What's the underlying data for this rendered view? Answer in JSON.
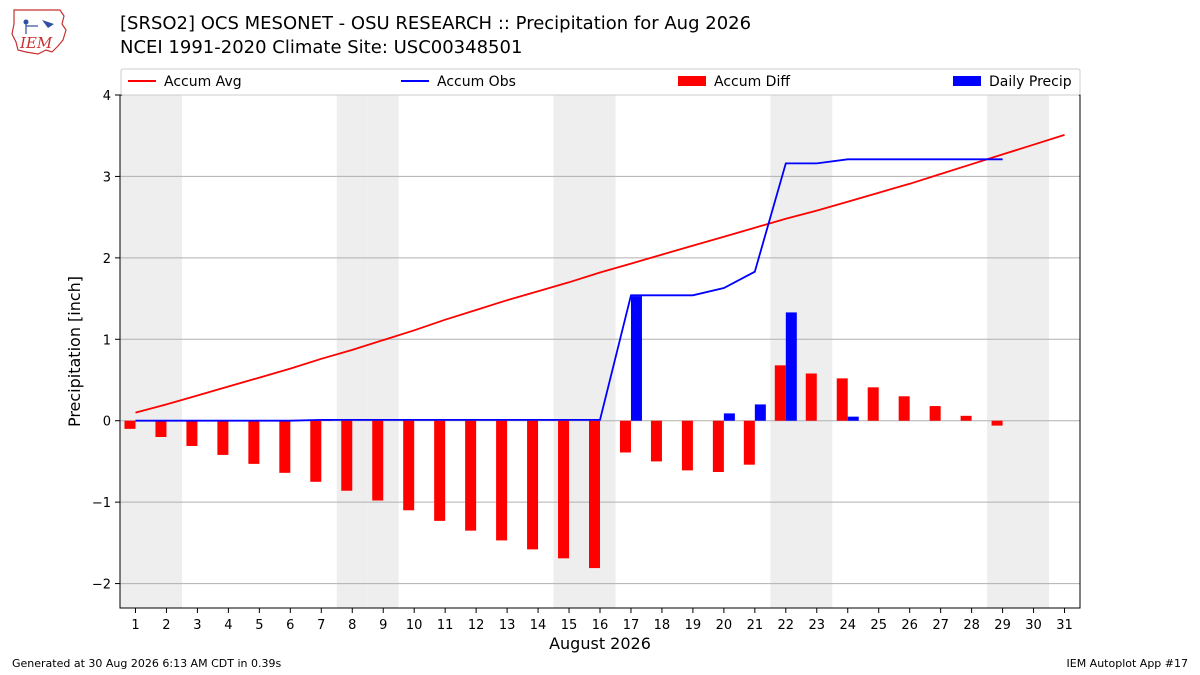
{
  "header": {
    "title_line1": "[SRSO2] OCS MESONET - OSU RESEARCH :: Precipitation for Aug 2026",
    "title_line2": "NCEI 1991-2020 Climate Site: USC00348501",
    "logo_text": "IEM"
  },
  "footer": {
    "generated": "Generated at 30 Aug 2026 6:13 AM CDT in 0.39s",
    "app": "IEM Autoplot App #17"
  },
  "colors": {
    "accum_avg": "#ff0000",
    "accum_obs": "#0000ff",
    "accum_diff": "#ff0000",
    "daily_precip": "#0000ff",
    "weekend_shade": "#eeeeee",
    "grid": "#b0b0b0"
  },
  "chart_data": {
    "type": "bar",
    "xlabel": "August 2026",
    "ylabel": "Precipitation [inch]",
    "xlim": [
      0.5,
      31.5
    ],
    "ylim": [
      -2.3,
      4.0
    ],
    "yticks": [
      -2,
      -1,
      0,
      1,
      2,
      3,
      4
    ],
    "ytick_labels": [
      "−2",
      "−1",
      "0",
      "1",
      "2",
      "3",
      "4"
    ],
    "grid": "horizontal",
    "legend_position": "top",
    "legend": [
      {
        "label": "Accum Avg",
        "kind": "line",
        "color": "#ff0000"
      },
      {
        "label": "Accum Obs",
        "kind": "line",
        "color": "#0000ff"
      },
      {
        "label": "Accum Diff",
        "kind": "bar",
        "color": "#ff0000"
      },
      {
        "label": "Daily Precip",
        "kind": "bar",
        "color": "#0000ff"
      }
    ],
    "weekend_days": [
      1,
      2,
      8,
      9,
      15,
      16,
      22,
      23,
      29,
      30
    ],
    "days": [
      1,
      2,
      3,
      4,
      5,
      6,
      7,
      8,
      9,
      10,
      11,
      12,
      13,
      14,
      15,
      16,
      17,
      18,
      19,
      20,
      21,
      22,
      23,
      24,
      25,
      26,
      27,
      28,
      29,
      30,
      31
    ],
    "series": [
      {
        "name": "Accum Avg",
        "type": "line",
        "values": [
          0.1,
          0.2,
          0.31,
          0.42,
          0.53,
          0.64,
          0.76,
          0.87,
          0.99,
          1.11,
          1.24,
          1.36,
          1.48,
          1.59,
          1.7,
          1.82,
          1.93,
          2.04,
          2.15,
          2.26,
          2.37,
          2.48,
          2.58,
          2.69,
          2.8,
          2.91,
          3.03,
          3.15,
          3.27,
          3.39,
          3.51
        ]
      },
      {
        "name": "Accum Obs",
        "type": "line",
        "values": [
          0.0,
          0.0,
          0.0,
          0.0,
          0.0,
          0.0,
          0.01,
          0.01,
          0.01,
          0.01,
          0.01,
          0.01,
          0.01,
          0.01,
          0.01,
          0.01,
          1.54,
          1.54,
          1.54,
          1.63,
          1.83,
          3.16,
          3.16,
          3.21,
          3.21,
          3.21,
          3.21,
          3.21,
          3.21,
          null,
          null
        ]
      },
      {
        "name": "Accum Diff",
        "type": "bar",
        "values": [
          -0.1,
          -0.2,
          -0.31,
          -0.42,
          -0.53,
          -0.64,
          -0.75,
          -0.86,
          -0.98,
          -1.1,
          -1.23,
          -1.35,
          -1.47,
          -1.58,
          -1.69,
          -1.81,
          -0.39,
          -0.5,
          -0.61,
          -0.63,
          -0.54,
          0.68,
          0.58,
          0.52,
          0.41,
          0.3,
          0.18,
          0.06,
          -0.06,
          null,
          null
        ]
      },
      {
        "name": "Daily Precip",
        "type": "bar",
        "values": [
          0,
          0,
          0,
          0,
          0,
          0,
          0.01,
          0,
          0,
          0,
          0,
          0,
          0,
          0,
          0,
          0,
          1.53,
          0,
          0,
          0.09,
          0.2,
          1.33,
          0,
          0.05,
          0,
          0,
          0,
          0,
          0,
          null,
          null
        ]
      }
    ]
  }
}
